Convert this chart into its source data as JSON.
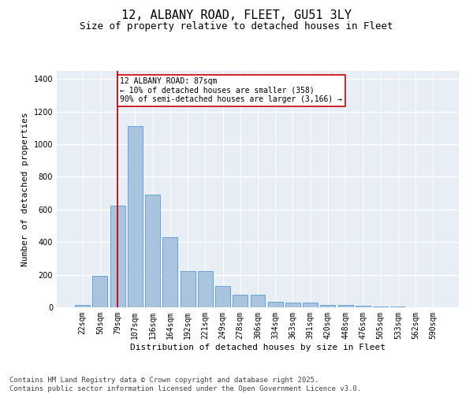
{
  "title1": "12, ALBANY ROAD, FLEET, GU51 3LY",
  "title2": "Size of property relative to detached houses in Fleet",
  "xlabel": "Distribution of detached houses by size in Fleet",
  "ylabel": "Number of detached properties",
  "categories": [
    "22sqm",
    "50sqm",
    "79sqm",
    "107sqm",
    "136sqm",
    "164sqm",
    "192sqm",
    "221sqm",
    "249sqm",
    "278sqm",
    "306sqm",
    "334sqm",
    "363sqm",
    "391sqm",
    "420sqm",
    "448sqm",
    "476sqm",
    "505sqm",
    "533sqm",
    "562sqm",
    "590sqm"
  ],
  "values": [
    15,
    195,
    625,
    1110,
    690,
    430,
    220,
    220,
    130,
    75,
    75,
    35,
    30,
    30,
    15,
    15,
    10,
    5,
    3,
    2,
    1
  ],
  "bar_color": "#aac4e0",
  "bar_edge_color": "#5b9bd5",
  "vline_x_index": 2,
  "vline_color": "#cc0000",
  "annotation_text": "12 ALBANY ROAD: 87sqm\n← 10% of detached houses are smaller (358)\n90% of semi-detached houses are larger (3,166) →",
  "annotation_box_color": "#cc0000",
  "ylim": [
    0,
    1450
  ],
  "yticks": [
    0,
    200,
    400,
    600,
    800,
    1000,
    1200,
    1400
  ],
  "bg_color": "#e8eef6",
  "grid_color": "#ffffff",
  "footnote": "Contains HM Land Registry data © Crown copyright and database right 2025.\nContains public sector information licensed under the Open Government Licence v3.0.",
  "title_fontsize": 11,
  "subtitle_fontsize": 9,
  "axis_label_fontsize": 8,
  "tick_fontsize": 7,
  "annotation_fontsize": 7,
  "footnote_fontsize": 6.5
}
